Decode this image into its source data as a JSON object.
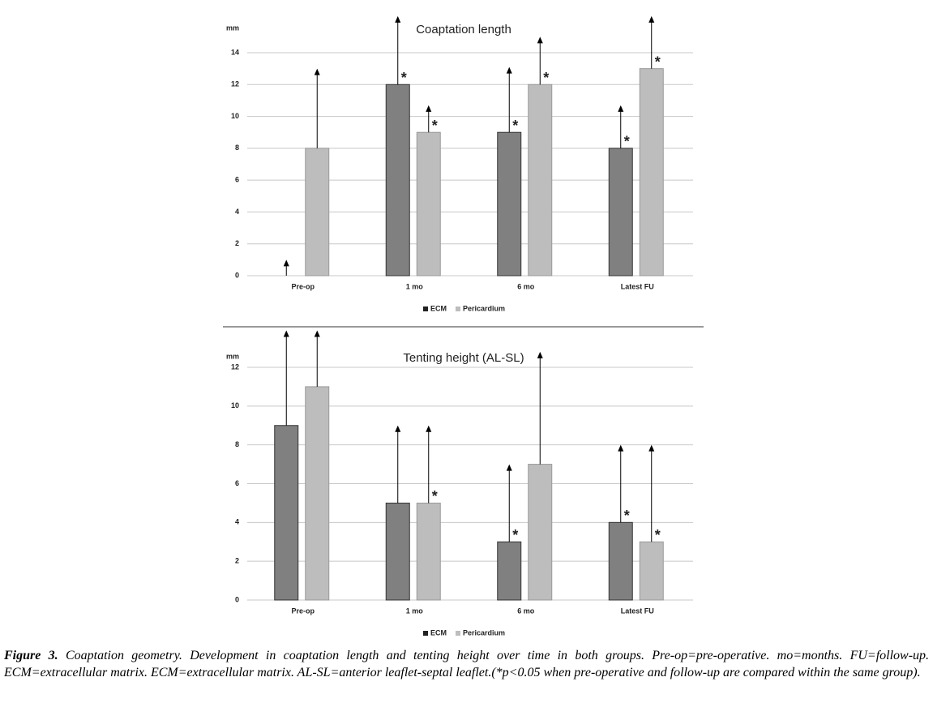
{
  "chart_data": [
    {
      "type": "bar",
      "title": "Coaptation length",
      "y_label": "mm",
      "categories": [
        "Pre-op",
        "1 mo",
        "6 mo",
        "Latest FU"
      ],
      "series": [
        {
          "name": "ECM",
          "color": "#808080",
          "values": [
            0,
            12,
            9,
            8
          ],
          "errors": [
            1,
            4.3,
            4.1,
            2.7
          ],
          "markers": [
            null,
            "*",
            "*",
            "*"
          ]
        },
        {
          "name": "Pericardium",
          "color": "#bdbdbd",
          "values": [
            8,
            9,
            12,
            13
          ],
          "errors": [
            5,
            1.7,
            3,
            3.3
          ],
          "markers": [
            null,
            "*",
            "*",
            "*"
          ]
        }
      ],
      "ylim": [
        0,
        14
      ],
      "yticks": [
        0,
        2,
        4,
        6,
        8,
        10,
        12,
        14
      ],
      "grid": true,
      "legend": "bottom"
    },
    {
      "type": "bar",
      "title": "Tenting height (AL-SL)",
      "y_label": "mm",
      "categories": [
        "Pre-op",
        "1 mo",
        "6 mo",
        "Latest FU"
      ],
      "series": [
        {
          "name": "ECM",
          "color": "#808080",
          "values": [
            9,
            5,
            3,
            4
          ],
          "errors": [
            4.9,
            4,
            4,
            4
          ],
          "markers": [
            null,
            null,
            "*",
            "*"
          ]
        },
        {
          "name": "Pericardium",
          "color": "#bdbdbd",
          "values": [
            11,
            5,
            7,
            3
          ],
          "errors": [
            2.9,
            4,
            5.8,
            5
          ],
          "markers": [
            null,
            "*",
            null,
            "*"
          ]
        }
      ],
      "ylim": [
        0,
        12
      ],
      "yticks": [
        0,
        2,
        4,
        6,
        8,
        10,
        12
      ],
      "grid": true,
      "legend": "bottom"
    }
  ],
  "caption_label": "Figure 3.",
  "caption": "Coaptation geometry. Development in coaptation length and tenting height over time in both groups. Pre-op=pre-operative. mo=months. FU=follow-up. ECM=extracellular matrix. ECM=extracellular matrix. AL-SL=anterior leaflet-septal leaflet.(*p<0.05 when pre-operative and follow-up are compared within the same group)."
}
